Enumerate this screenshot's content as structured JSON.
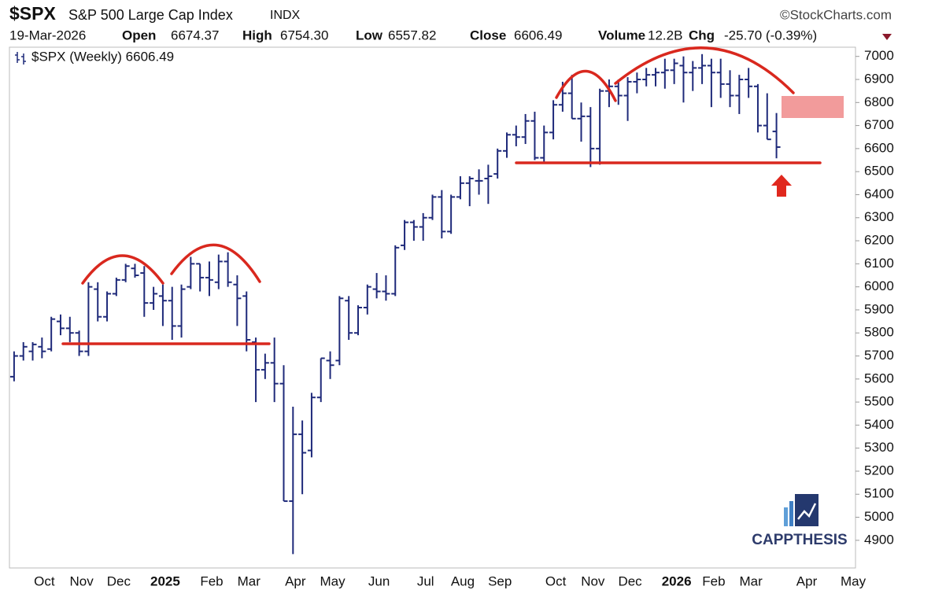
{
  "header": {
    "symbol": "$SPX",
    "name": "S&P 500 Large Cap Index",
    "exchange": "INDX",
    "source": "©StockCharts.com",
    "date": "19-Mar-2026",
    "stats": [
      {
        "label": "Open",
        "value": "6674.37"
      },
      {
        "label": "High",
        "value": "6754.30"
      },
      {
        "label": "Low",
        "value": "6557.82"
      },
      {
        "label": "Close",
        "value": "6606.49"
      },
      {
        "label": "Volume",
        "value": "12.2B"
      },
      {
        "label": "Chg",
        "value": "-25.70 (-0.39%)"
      }
    ]
  },
  "branding": {
    "logo": "CAPPTHESIS"
  },
  "chart_data": {
    "type": "ohlc",
    "legend": "$SPX (Weekly) 6606.49",
    "color": "#1f2a7a",
    "categories": [
      null,
      null,
      null,
      "Oct",
      null,
      null,
      null,
      "Nov",
      null,
      null,
      null,
      "Dec",
      null,
      null,
      null,
      null,
      "2025",
      null,
      null,
      null,
      null,
      "Feb",
      null,
      null,
      null,
      "Mar",
      null,
      null,
      null,
      null,
      "Apr",
      null,
      null,
      null,
      "May",
      null,
      null,
      null,
      null,
      "Jun",
      null,
      null,
      null,
      null,
      "Jul",
      null,
      null,
      null,
      "Aug",
      null,
      null,
      null,
      "Sep",
      null,
      null,
      null,
      null,
      null,
      "Oct",
      null,
      null,
      null,
      "Nov",
      null,
      null,
      null,
      "Dec",
      null,
      null,
      null,
      null,
      "2026",
      null,
      null,
      null,
      "Feb",
      null,
      null,
      null,
      "Mar",
      null,
      null,
      null,
      null,
      null,
      "Apr",
      null,
      null,
      null,
      null,
      "May"
    ],
    "open": [
      5610,
      5700,
      5720,
      5740,
      5730,
      5850,
      5820,
      5800,
      5720,
      5990,
      5870,
      5970,
      6030,
      6080,
      6060,
      5930,
      5960,
      5940,
      5830,
      6000,
      6100,
      6040,
      6020,
      6110,
      6010,
      5960,
      5760,
      5640,
      5670,
      5580,
      5070,
      5360,
      5290,
      5520,
      5680,
      5680,
      5940,
      5800,
      5910,
      5990,
      5980,
      5970,
      6180,
      6280,
      6260,
      6300,
      6390,
      6240,
      6390,
      6450,
      6460,
      6470,
      6490,
      6590,
      6660,
      6650,
      6720,
      6560,
      6670,
      6790,
      6840,
      6730,
      6740,
      6600,
      6850,
      6870,
      6830,
      6890,
      6900,
      6920,
      6930,
      6940,
      6960,
      6930,
      6950,
      6960,
      6930,
      6880,
      6830,
      6900,
      6870,
      6700,
      6674.37,
      null,
      null,
      null,
      null,
      null,
      null,
      null,
      null
    ],
    "high": [
      5720,
      5760,
      5760,
      5780,
      5870,
      5880,
      5870,
      5810,
      6020,
      6020,
      5980,
      6040,
      6100,
      6100,
      6090,
      6000,
      6010,
      6000,
      6010,
      6130,
      6100,
      6110,
      6140,
      6150,
      6050,
      5980,
      5780,
      5710,
      5780,
      5660,
      5480,
      5420,
      5540,
      5690,
      5720,
      5960,
      5960,
      5920,
      6010,
      6060,
      6050,
      6180,
      6290,
      6290,
      6320,
      6400,
      6420,
      6400,
      6480,
      6480,
      6510,
      6530,
      6600,
      6670,
      6700,
      6750,
      6760,
      6700,
      6810,
      6890,
      6920,
      6800,
      6780,
      6860,
      6900,
      6900,
      6910,
      6930,
      6950,
      6950,
      6990,
      6990,
      7000,
      6980,
      7010,
      6990,
      6990,
      6940,
      6920,
      6950,
      6880,
      6840,
      6754.3,
      null,
      null,
      null,
      null,
      null,
      null,
      null,
      null
    ],
    "low": [
      5590,
      5680,
      5680,
      5690,
      5720,
      5790,
      5760,
      5700,
      5700,
      5850,
      5850,
      5960,
      6020,
      6040,
      5870,
      5900,
      5830,
      5770,
      5780,
      5990,
      5980,
      5960,
      5990,
      6000,
      5830,
      5720,
      5500,
      5600,
      5500,
      5070,
      4840,
      5100,
      5260,
      5500,
      5600,
      5660,
      5770,
      5790,
      5880,
      5950,
      5940,
      5960,
      6160,
      6200,
      6200,
      6290,
      6210,
      6230,
      6380,
      6350,
      6400,
      6360,
      6470,
      6560,
      6610,
      6620,
      6550,
      6540,
      6640,
      6760,
      6730,
      6630,
      6520,
      6530,
      6780,
      6790,
      6720,
      6840,
      6870,
      6870,
      6860,
      6880,
      6800,
      6850,
      6880,
      6780,
      6820,
      6780,
      6750,
      6820,
      6670,
      6640,
      6557.82,
      null,
      null,
      null,
      null,
      null,
      null,
      null,
      null
    ],
    "close": [
      5700,
      5740,
      5750,
      5720,
      5860,
      5820,
      5800,
      5720,
      6000,
      5870,
      5970,
      6030,
      6090,
      6050,
      5930,
      5970,
      5940,
      5830,
      5990,
      6100,
      6040,
      6030,
      6110,
      6020,
      5950,
      5770,
      5640,
      5670,
      5580,
      5070,
      5360,
      5280,
      5520,
      5690,
      5660,
      5950,
      5800,
      5910,
      6000,
      5980,
      5970,
      6170,
      6280,
      6260,
      6300,
      6390,
      6240,
      6390,
      6450,
      6470,
      6460,
      6480,
      6590,
      6660,
      6650,
      6720,
      6560,
      6670,
      6790,
      6840,
      6730,
      6740,
      6600,
      6850,
      6870,
      6830,
      6890,
      6900,
      6920,
      6930,
      6940,
      6970,
      6930,
      6950,
      6960,
      6930,
      6880,
      6830,
      6900,
      6870,
      6700,
      6640,
      6606.49,
      null,
      null,
      null,
      null,
      null,
      null,
      null,
      null
    ],
    "ylim": [
      4780,
      7040
    ],
    "yticks": [
      4900,
      5000,
      5100,
      5200,
      5300,
      5400,
      5500,
      5600,
      5700,
      5800,
      5900,
      6000,
      6100,
      6200,
      6300,
      6400,
      6500,
      6600,
      6700,
      6800,
      6900,
      7000
    ],
    "y_axis_side": "right"
  }
}
